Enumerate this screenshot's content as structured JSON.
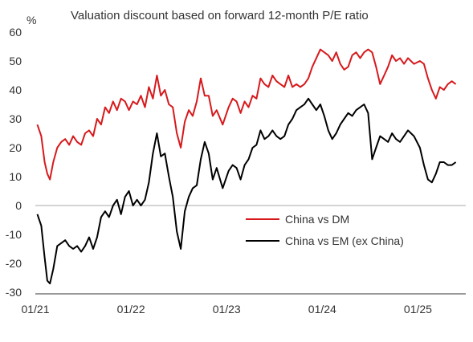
{
  "chart_data": {
    "type": "line",
    "title": "Valuation discount based on forward 12-month P/E ratio",
    "ylabel": "%",
    "ylim": [
      -30,
      60
    ],
    "yticks": [
      60,
      50,
      40,
      30,
      20,
      10,
      0,
      -10,
      -20,
      -30
    ],
    "xlim": [
      "2021-01",
      "2025-06"
    ],
    "xticks": [
      "01/21",
      "01/22",
      "01/23",
      "01/24",
      "01/25"
    ],
    "grid": false,
    "legend_position": "center-right",
    "series": [
      {
        "name": "China vs DM",
        "color": "#d7191c",
        "points": [
          [
            "2021-01",
            28
          ],
          [
            "2021-01",
            24
          ],
          [
            "2021-02",
            15
          ],
          [
            "2021-02",
            11
          ],
          [
            "2021-02",
            9
          ],
          [
            "2021-03",
            15
          ],
          [
            "2021-03",
            20
          ],
          [
            "2021-04",
            22
          ],
          [
            "2021-04",
            23
          ],
          [
            "2021-05",
            21
          ],
          [
            "2021-05",
            24
          ],
          [
            "2021-06",
            22
          ],
          [
            "2021-06",
            21
          ],
          [
            "2021-07",
            25
          ],
          [
            "2021-07",
            26
          ],
          [
            "2021-08",
            24
          ],
          [
            "2021-08",
            30
          ],
          [
            "2021-09",
            28
          ],
          [
            "2021-09",
            34
          ],
          [
            "2021-10",
            32
          ],
          [
            "2021-10",
            36
          ],
          [
            "2021-11",
            33
          ],
          [
            "2021-11",
            37
          ],
          [
            "2021-12",
            36
          ],
          [
            "2021-12",
            33
          ],
          [
            "2022-01",
            36
          ],
          [
            "2022-01",
            35
          ],
          [
            "2022-02",
            38
          ],
          [
            "2022-02",
            34
          ],
          [
            "2022-03",
            41
          ],
          [
            "2022-03",
            37
          ],
          [
            "2022-04",
            45
          ],
          [
            "2022-04",
            38
          ],
          [
            "2022-05",
            40
          ],
          [
            "2022-05",
            35
          ],
          [
            "2022-06",
            34
          ],
          [
            "2022-06",
            25
          ],
          [
            "2022-07",
            20
          ],
          [
            "2022-07",
            29
          ],
          [
            "2022-08",
            33
          ],
          [
            "2022-08",
            31
          ],
          [
            "2022-09",
            36
          ],
          [
            "2022-09",
            44
          ],
          [
            "2022-10",
            38
          ],
          [
            "2022-10",
            38
          ],
          [
            "2022-11",
            31
          ],
          [
            "2022-11",
            33
          ],
          [
            "2022-12",
            28
          ],
          [
            "2023-01",
            34
          ],
          [
            "2023-01",
            37
          ],
          [
            "2023-02",
            36
          ],
          [
            "2023-02",
            32
          ],
          [
            "2023-03",
            36
          ],
          [
            "2023-03",
            34
          ],
          [
            "2023-04",
            38
          ],
          [
            "2023-04",
            37
          ],
          [
            "2023-05",
            44
          ],
          [
            "2023-05",
            42
          ],
          [
            "2023-06",
            41
          ],
          [
            "2023-06",
            45
          ],
          [
            "2023-07",
            43
          ],
          [
            "2023-07",
            42
          ],
          [
            "2023-08",
            41
          ],
          [
            "2023-08",
            45
          ],
          [
            "2023-09",
            41
          ],
          [
            "2023-09",
            42
          ],
          [
            "2023-10",
            41
          ],
          [
            "2023-10",
            42
          ],
          [
            "2023-11",
            44
          ],
          [
            "2023-11",
            48
          ],
          [
            "2023-12",
            51
          ],
          [
            "2023-12",
            54
          ],
          [
            "2024-01",
            53
          ],
          [
            "2024-01",
            52
          ],
          [
            "2024-02",
            50
          ],
          [
            "2024-02",
            53
          ],
          [
            "2024-03",
            49
          ],
          [
            "2024-03",
            47
          ],
          [
            "2024-04",
            48
          ],
          [
            "2024-04",
            52
          ],
          [
            "2024-05",
            53
          ],
          [
            "2024-05",
            51
          ],
          [
            "2024-06",
            53
          ],
          [
            "2024-06",
            54
          ],
          [
            "2024-07",
            53
          ],
          [
            "2024-07",
            48
          ],
          [
            "2024-08",
            42
          ],
          [
            "2024-08",
            45
          ],
          [
            "2024-09",
            48
          ],
          [
            "2024-09",
            52
          ],
          [
            "2024-10",
            50
          ],
          [
            "2024-10",
            51
          ],
          [
            "2024-11",
            49
          ],
          [
            "2024-11",
            51
          ],
          [
            "2024-12",
            49
          ],
          [
            "2025-01",
            50
          ],
          [
            "2025-01",
            49
          ],
          [
            "2025-02",
            44
          ],
          [
            "2025-02",
            40
          ],
          [
            "2025-03",
            37
          ],
          [
            "2025-03",
            41
          ],
          [
            "2025-04",
            40
          ],
          [
            "2025-04",
            42
          ],
          [
            "2025-05",
            43
          ],
          [
            "2025-05",
            42
          ]
        ]
      },
      {
        "name": "China vs EM (ex China)",
        "color": "#000000",
        "points": [
          [
            "2021-01",
            -3
          ],
          [
            "2021-01",
            -7
          ],
          [
            "2021-02",
            -18
          ],
          [
            "2021-02",
            -26
          ],
          [
            "2021-02",
            -27
          ],
          [
            "2021-03",
            -22
          ],
          [
            "2021-03",
            -14
          ],
          [
            "2021-04",
            -13
          ],
          [
            "2021-04",
            -12
          ],
          [
            "2021-05",
            -14
          ],
          [
            "2021-05",
            -15
          ],
          [
            "2021-06",
            -14
          ],
          [
            "2021-06",
            -16
          ],
          [
            "2021-07",
            -14
          ],
          [
            "2021-07",
            -11
          ],
          [
            "2021-08",
            -15
          ],
          [
            "2021-08",
            -11
          ],
          [
            "2021-09",
            -4
          ],
          [
            "2021-09",
            -2
          ],
          [
            "2021-10",
            -4
          ],
          [
            "2021-10",
            0
          ],
          [
            "2021-11",
            2
          ],
          [
            "2021-11",
            -3
          ],
          [
            "2021-12",
            3
          ],
          [
            "2021-12",
            5
          ],
          [
            "2022-01",
            0
          ],
          [
            "2022-01",
            2
          ],
          [
            "2022-02",
            0
          ],
          [
            "2022-02",
            2
          ],
          [
            "2022-03",
            8
          ],
          [
            "2022-03",
            18
          ],
          [
            "2022-04",
            25
          ],
          [
            "2022-04",
            17
          ],
          [
            "2022-05",
            18
          ],
          [
            "2022-05",
            10
          ],
          [
            "2022-06",
            3
          ],
          [
            "2022-06",
            -9
          ],
          [
            "2022-07",
            -15
          ],
          [
            "2022-07",
            -2
          ],
          [
            "2022-08",
            3
          ],
          [
            "2022-08",
            6
          ],
          [
            "2022-09",
            7
          ],
          [
            "2022-09",
            16
          ],
          [
            "2022-10",
            22
          ],
          [
            "2022-10",
            18
          ],
          [
            "2022-11",
            9
          ],
          [
            "2022-11",
            13
          ],
          [
            "2022-12",
            6
          ],
          [
            "2023-01",
            12
          ],
          [
            "2023-01",
            14
          ],
          [
            "2023-02",
            13
          ],
          [
            "2023-02",
            9
          ],
          [
            "2023-03",
            14
          ],
          [
            "2023-03",
            16
          ],
          [
            "2023-04",
            20
          ],
          [
            "2023-04",
            21
          ],
          [
            "2023-05",
            26
          ],
          [
            "2023-05",
            23
          ],
          [
            "2023-06",
            24
          ],
          [
            "2023-06",
            26
          ],
          [
            "2023-07",
            24
          ],
          [
            "2023-07",
            23
          ],
          [
            "2023-08",
            24
          ],
          [
            "2023-08",
            28
          ],
          [
            "2023-09",
            30
          ],
          [
            "2023-09",
            33
          ],
          [
            "2023-10",
            34
          ],
          [
            "2023-10",
            35
          ],
          [
            "2023-11",
            37
          ],
          [
            "2023-11",
            35
          ],
          [
            "2023-12",
            33
          ],
          [
            "2023-12",
            35
          ],
          [
            "2024-01",
            31
          ],
          [
            "2024-01",
            26
          ],
          [
            "2024-02",
            23
          ],
          [
            "2024-02",
            25
          ],
          [
            "2024-03",
            28
          ],
          [
            "2024-03",
            30
          ],
          [
            "2024-04",
            32
          ],
          [
            "2024-04",
            31
          ],
          [
            "2024-05",
            33
          ],
          [
            "2024-05",
            34
          ],
          [
            "2024-06",
            35
          ],
          [
            "2024-06",
            32
          ],
          [
            "2024-07",
            16
          ],
          [
            "2024-07",
            20
          ],
          [
            "2024-08",
            24
          ],
          [
            "2024-08",
            23
          ],
          [
            "2024-09",
            22
          ],
          [
            "2024-09",
            25
          ],
          [
            "2024-10",
            23
          ],
          [
            "2024-10",
            22
          ],
          [
            "2024-11",
            24
          ],
          [
            "2024-11",
            26
          ],
          [
            "2024-12",
            24
          ],
          [
            "2025-01",
            20
          ],
          [
            "2025-01",
            14
          ],
          [
            "2025-02",
            9
          ],
          [
            "2025-02",
            8
          ],
          [
            "2025-03",
            11
          ],
          [
            "2025-03",
            15
          ],
          [
            "2025-04",
            15
          ],
          [
            "2025-04",
            14
          ],
          [
            "2025-05",
            14
          ],
          [
            "2025-05",
            15
          ]
        ]
      }
    ]
  }
}
